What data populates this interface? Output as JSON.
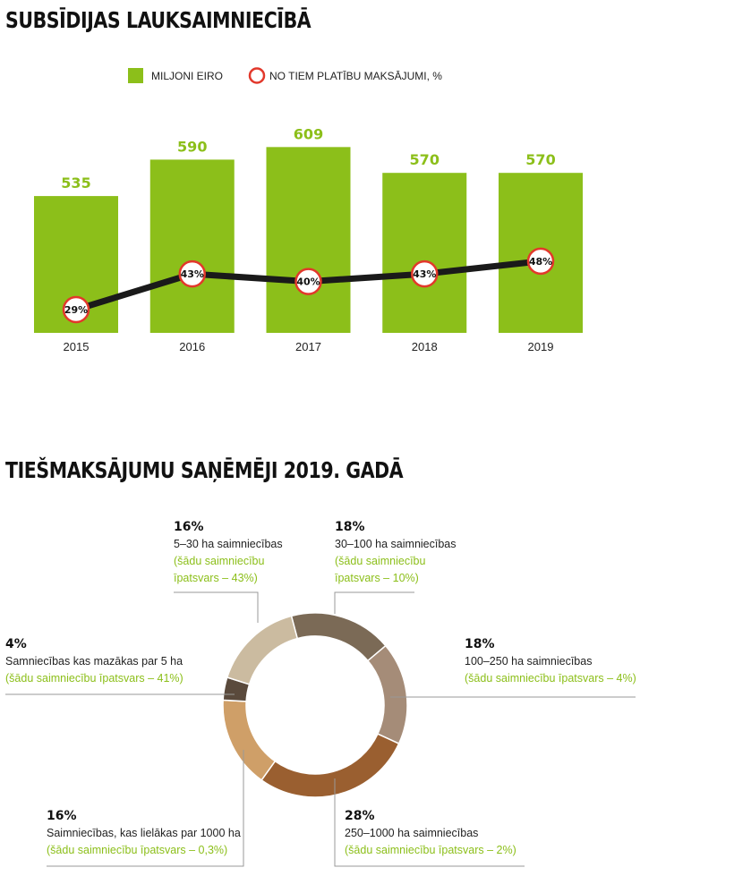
{
  "titles": {
    "chart1": "SUBSĪDIJAS LAUKSAIMNIECĪBĀ",
    "chart2": "TIEŠMAKSĀJUMU SAŅĒMĒJI 2019. GADĀ"
  },
  "chart_data": [
    {
      "type": "bar",
      "title": "SUBSĪDIJAS LAUKSAIMNIECĪBĀ",
      "categories": [
        "2015",
        "2016",
        "2017",
        "2018",
        "2019"
      ],
      "series": [
        {
          "name": "MILJONI EIRO",
          "type": "bar",
          "values": [
            535,
            590,
            609,
            570,
            570
          ],
          "color": "#8cbf1a"
        },
        {
          "name": "NO TIEM PLATĪBU MAKSĀJUMI, %",
          "type": "line",
          "values": [
            29,
            43,
            40,
            43,
            48
          ],
          "labels": [
            "29%",
            "43%",
            "40%",
            "43%",
            "48%"
          ],
          "color": "#1a1a1a",
          "marker_color": "#e2382b"
        }
      ],
      "legend_position": "top",
      "grid": false
    },
    {
      "type": "pie",
      "variant": "donut",
      "title": "TIEŠMAKSĀJUMU SAŅĒMĒJI 2019. GADĀ",
      "slices": [
        {
          "percent": 18,
          "label": "18%",
          "desc": "30–100 ha saimniecības",
          "share": "(šādu saimniecību īpatsvars – 10%)",
          "color": "#7b6a56"
        },
        {
          "percent": 18,
          "label": "18%",
          "desc": "100–250 ha saimniecības",
          "share": "(šādu saimniecību īpatsvars – 4%)",
          "color": "#a58c78"
        },
        {
          "percent": 28,
          "label": "28%",
          "desc": "250–1000 ha saimniecības",
          "share": "(šādu saimniecību īpatsvars – 2%)",
          "color": "#9a5f30"
        },
        {
          "percent": 16,
          "label": "16%",
          "desc": "Saimniecības, kas lielākas par 1000 ha",
          "share": "(šādu saimniecību īpatsvars – 0,3%)",
          "color": "#cf9f68"
        },
        {
          "percent": 4,
          "label": "4%",
          "desc": "Samniecības kas mazākas par 5 ha",
          "share": "(šādu saimniecību īpatsvars – 41%)",
          "color": "#5a4a3c"
        },
        {
          "percent": 16,
          "label": "16%",
          "desc": "5–30 ha saimniecības",
          "share": "(šādu saimniecību īpatsvars – 43%)",
          "color": "#cbbba0"
        }
      ]
    }
  ]
}
